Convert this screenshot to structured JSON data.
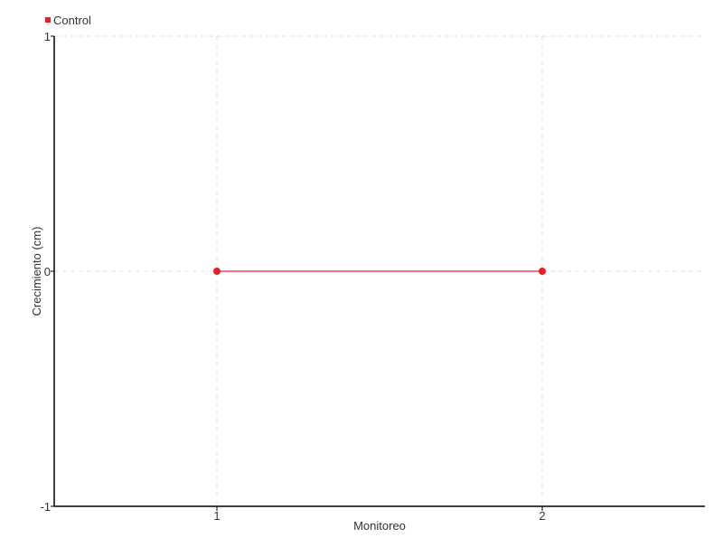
{
  "chart_data": {
    "type": "line",
    "title": "",
    "xlabel": "Monitoreo",
    "ylabel": "Crecimiento (cm)",
    "xlim": [
      0.5,
      2.5
    ],
    "ylim": [
      -1,
      1
    ],
    "x_ticks": [
      1,
      2
    ],
    "y_ticks": [
      -1,
      0,
      1
    ],
    "grid": true,
    "legend_placement": "top-left",
    "series": [
      {
        "name": "Control",
        "color": "#ee1c25",
        "x": [
          1,
          2
        ],
        "y": [
          0,
          0
        ]
      }
    ]
  }
}
